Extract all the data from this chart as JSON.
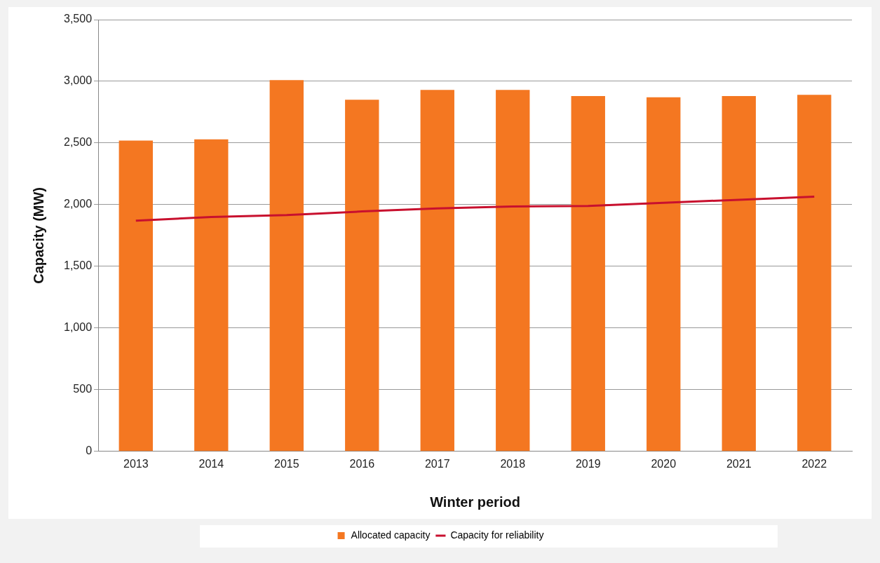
{
  "chart_data": {
    "type": "bar",
    "xlabel": "Winter period",
    "ylabel": "Capacity (MW)",
    "categories": [
      "2013",
      "2014",
      "2015",
      "2016",
      "2017",
      "2018",
      "2019",
      "2020",
      "2021",
      "2022"
    ],
    "series": [
      {
        "name": "Allocated capacity",
        "color": "#f47721",
        "values": [
          2520,
          2530,
          3010,
          2850,
          2930,
          2930,
          2880,
          2870,
          2880,
          2890
        ]
      },
      {
        "name": "Capacity for reliability",
        "type": "line",
        "color": "#c8102e",
        "values": [
          1870,
          1900,
          1915,
          1945,
          1970,
          1985,
          1990,
          2015,
          2040,
          2065
        ]
      }
    ],
    "ylim": [
      0,
      3500
    ],
    "yticks": [
      0,
      500,
      {
        "value": 1000,
        "label": "1,000"
      },
      {
        "value": 1500,
        "label": "1,500"
      },
      {
        "value": 2000,
        "label": "2,000"
      },
      {
        "value": 2500,
        "label": "2,500"
      },
      {
        "value": 3000,
        "label": "3,000"
      },
      {
        "value": 3500,
        "label": "3,500"
      }
    ],
    "grid": "y",
    "legend": "bottom",
    "marker": "none"
  }
}
